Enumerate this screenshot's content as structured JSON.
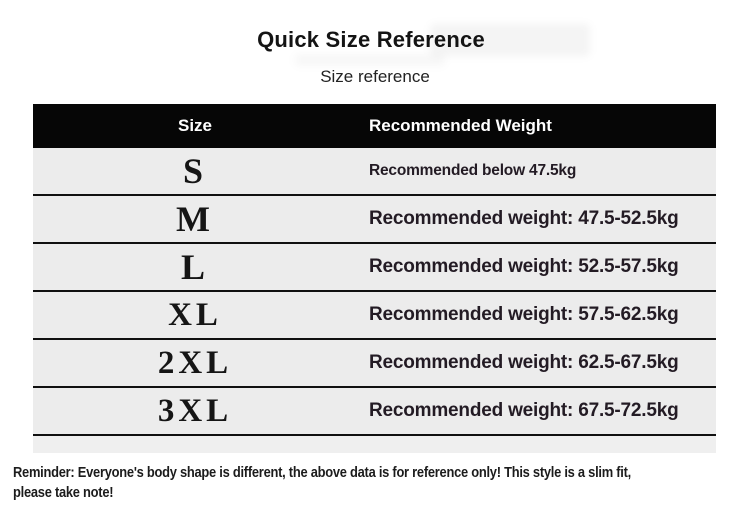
{
  "page": {
    "title": "Quick Size Reference",
    "subtitle": "Size reference"
  },
  "table": {
    "headers": {
      "size": "Size",
      "weight": "Recommended Weight"
    },
    "rows": [
      {
        "size": "S",
        "weight": "Recommended below 47.5kg"
      },
      {
        "size": "M",
        "weight": "Recommended weight: 47.5-52.5kg"
      },
      {
        "size": "L",
        "weight": "Recommended weight: 52.5-57.5kg"
      },
      {
        "size": "XL",
        "weight": "Recommended weight: 57.5-62.5kg"
      },
      {
        "size": "2XL",
        "weight": "Recommended weight: 62.5-67.5kg"
      },
      {
        "size": "3XL",
        "weight": "Recommended weight: 67.5-72.5kg"
      }
    ]
  },
  "footer": {
    "reminder": "Reminder: Everyone's body shape is different, the above data is for reference only! This style is a slim fit, please take note!",
    "lines": [
      "Reminder: Everyone's body shape is different, the above data is for reference only! This style is a slim fit,",
      "please take note!"
    ]
  },
  "colors": {
    "page_bg": "#ffffff",
    "header_bg": "#060606",
    "header_text": "#ffffff",
    "row_bg": "#ececec",
    "tail_bg": "#efefef",
    "divider": "#101010",
    "body_text": "#231b24",
    "size_text": "#151515",
    "title_text": "#141414",
    "footer_text": "#1c1c1c"
  }
}
